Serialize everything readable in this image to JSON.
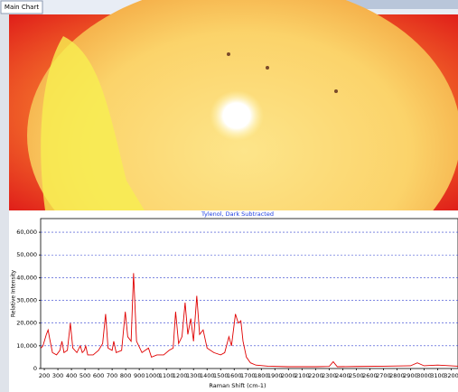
{
  "tab": "Main Chart",
  "chart_data": {
    "type": "line",
    "title": "Tylenol, Dark Subtracted",
    "xlabel": "Raman Shift (cm-1)",
    "ylabel": "Relative Intensity",
    "color": "#e00000",
    "grid": true,
    "xlim": [
      173,
      3250
    ],
    "ylim": [
      0,
      66000
    ],
    "xticks": [
      200,
      300,
      400,
      500,
      600,
      700,
      800,
      900,
      1000,
      1100,
      1200,
      1300,
      1400,
      1500,
      1600,
      1700,
      1800,
      1900,
      2000,
      2100,
      2200,
      2300,
      2400,
      2500,
      2600,
      2700,
      2800,
      2900,
      3000,
      3100,
      3200
    ],
    "yticks": [
      0,
      {
        "value": 10000,
        "label": "10,000"
      },
      {
        "value": 20000,
        "label": "20,000"
      },
      {
        "value": 30000,
        "label": "30,000"
      },
      {
        "value": 40000,
        "label": "40,000"
      },
      {
        "value": 50000,
        "label": "50,000"
      },
      {
        "value": 60000,
        "label": "60,000"
      }
    ],
    "x": [
      175,
      190,
      200,
      215,
      228,
      240,
      260,
      290,
      315,
      330,
      345,
      370,
      392,
      410,
      440,
      465,
      480,
      495,
      505,
      520,
      560,
      600,
      630,
      652,
      670,
      700,
      712,
      730,
      770,
      797,
      815,
      840,
      858,
      880,
      920,
      968,
      990,
      1030,
      1080,
      1120,
      1150,
      1168,
      1190,
      1215,
      1238,
      1258,
      1280,
      1300,
      1324,
      1345,
      1371,
      1400,
      1450,
      1500,
      1530,
      1561,
      1580,
      1609,
      1630,
      1649,
      1665,
      1690,
      1720,
      1760,
      1850,
      2000,
      2200,
      2300,
      2330,
      2360,
      2500,
      2700,
      2900,
      2950,
      3000,
      3100,
      3250
    ],
    "values": [
      9000,
      10000,
      12000,
      15000,
      17000,
      13000,
      7000,
      6000,
      8000,
      12000,
      7000,
      8000,
      20000,
      9000,
      7000,
      10000,
      7000,
      8000,
      10000,
      6000,
      6000,
      8000,
      11000,
      24000,
      9000,
      8000,
      12000,
      7000,
      8000,
      25000,
      14000,
      12000,
      42000,
      12000,
      7000,
      9000,
      5000,
      6000,
      6000,
      8000,
      9000,
      25000,
      11000,
      14000,
      29000,
      15000,
      22000,
      12000,
      32000,
      15000,
      17000,
      9000,
      7000,
      6000,
      7000,
      14000,
      10000,
      24000,
      20000,
      21000,
      12000,
      5000,
      2500,
      1500,
      1000,
      800,
      800,
      900,
      3000,
      800,
      900,
      1000,
      1200,
      2500,
      1200,
      1500,
      1000
    ]
  }
}
